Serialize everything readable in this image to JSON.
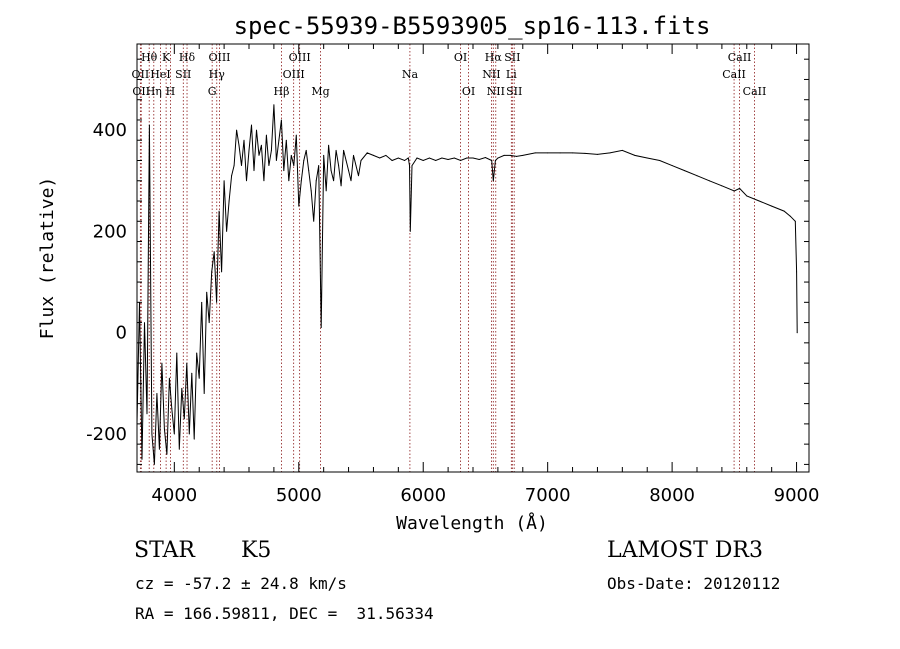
{
  "chart_data": {
    "type": "line",
    "title": "spec-55939-B5593905_sp16-113.fits",
    "xlabel": "Wavelength (Å)",
    "ylabel": "Flux (relative)",
    "xlim": [
      3700,
      9100
    ],
    "ylim": [
      -275,
      570
    ],
    "xticks": [
      4000,
      5000,
      6000,
      7000,
      8000,
      9000
    ],
    "yticks": [
      -200,
      0,
      200,
      400
    ],
    "series": [
      {
        "name": "flux",
        "x": [
          3700,
          3720,
          3740,
          3760,
          3780,
          3800,
          3820,
          3840,
          3860,
          3880,
          3900,
          3920,
          3940,
          3960,
          3980,
          4000,
          4020,
          4040,
          4060,
          4080,
          4100,
          4120,
          4140,
          4160,
          4180,
          4200,
          4220,
          4240,
          4260,
          4280,
          4300,
          4320,
          4340,
          4360,
          4380,
          4400,
          4420,
          4440,
          4460,
          4480,
          4500,
          4520,
          4540,
          4560,
          4580,
          4600,
          4620,
          4640,
          4660,
          4680,
          4700,
          4720,
          4740,
          4760,
          4780,
          4800,
          4820,
          4840,
          4860,
          4880,
          4900,
          4920,
          4940,
          4960,
          4980,
          5000,
          5020,
          5040,
          5060,
          5080,
          5100,
          5120,
          5140,
          5160,
          5180,
          5200,
          5220,
          5240,
          5260,
          5280,
          5300,
          5320,
          5340,
          5360,
          5380,
          5400,
          5420,
          5440,
          5460,
          5480,
          5500,
          5550,
          5600,
          5650,
          5700,
          5750,
          5800,
          5850,
          5880,
          5890,
          5896,
          5910,
          5950,
          6000,
          6050,
          6100,
          6150,
          6200,
          6250,
          6300,
          6350,
          6400,
          6450,
          6500,
          6550,
          6563,
          6580,
          6600,
          6650,
          6700,
          6750,
          6800,
          6900,
          7000,
          7100,
          7200,
          7300,
          7400,
          7500,
          7600,
          7700,
          7800,
          7900,
          8000,
          8100,
          8200,
          8300,
          8400,
          8500,
          8542,
          8600,
          8700,
          8800,
          8900,
          8950,
          8990,
          9000,
          9005
        ],
        "y": [
          -180,
          60,
          -250,
          20,
          -160,
          410,
          -200,
          -260,
          -120,
          -230,
          -60,
          -190,
          -240,
          -90,
          -150,
          -200,
          -40,
          -230,
          -110,
          -170,
          -60,
          -200,
          -80,
          -210,
          -40,
          -90,
          60,
          -120,
          80,
          20,
          120,
          160,
          60,
          240,
          120,
          300,
          200,
          260,
          310,
          330,
          400,
          370,
          330,
          380,
          300,
          360,
          410,
          320,
          400,
          350,
          370,
          300,
          390,
          330,
          360,
          450,
          340,
          380,
          420,
          320,
          380,
          300,
          350,
          330,
          390,
          250,
          300,
          340,
          360,
          320,
          280,
          220,
          300,
          330,
          10,
          350,
          280,
          370,
          320,
          300,
          360,
          330,
          290,
          360,
          340,
          320,
          300,
          350,
          330,
          310,
          340,
          355,
          350,
          345,
          350,
          340,
          345,
          340,
          345,
          330,
          200,
          330,
          345,
          340,
          345,
          340,
          345,
          342,
          345,
          340,
          345,
          345,
          342,
          346,
          340,
          300,
          340,
          345,
          350,
          350,
          348,
          350,
          355,
          355,
          355,
          355,
          354,
          352,
          355,
          360,
          350,
          345,
          340,
          330,
          320,
          310,
          300,
          290,
          280,
          285,
          270,
          260,
          250,
          240,
          230,
          220,
          120,
          0
        ]
      }
    ],
    "line_markers": [
      {
        "wave": 3727,
        "label": "OII",
        "row": 2
      },
      {
        "wave": 3734,
        "label": "OII",
        "row": 3
      },
      {
        "wave": 3798,
        "label": "Hθ",
        "row": 1
      },
      {
        "wave": 3835,
        "label": "Hη",
        "row": 3
      },
      {
        "wave": 3889,
        "label": "HeI",
        "row": 2
      },
      {
        "wave": 3934,
        "label": "K",
        "row": 1
      },
      {
        "wave": 3969,
        "label": "H",
        "row": 3
      },
      {
        "wave": 4072,
        "label": "SII",
        "row": 2
      },
      {
        "wave": 4102,
        "label": "Hδ",
        "row": 1
      },
      {
        "wave": 4304,
        "label": "G",
        "row": 3
      },
      {
        "wave": 4341,
        "label": "Hγ",
        "row": 2
      },
      {
        "wave": 4363,
        "label": "OIII",
        "row": 1
      },
      {
        "wave": 4861,
        "label": "Hβ",
        "row": 3
      },
      {
        "wave": 4959,
        "label": "OIII",
        "row": 2
      },
      {
        "wave": 5007,
        "label": "OIII",
        "row": 1
      },
      {
        "wave": 5175,
        "label": "Mg",
        "row": 3
      },
      {
        "wave": 5893,
        "label": "Na",
        "row": 2
      },
      {
        "wave": 6300,
        "label": "OI",
        "row": 1
      },
      {
        "wave": 6364,
        "label": "OI",
        "row": 3
      },
      {
        "wave": 6548,
        "label": "NII",
        "row": 2
      },
      {
        "wave": 6563,
        "label": "Hα",
        "row": 1
      },
      {
        "wave": 6583,
        "label": "NII",
        "row": 3
      },
      {
        "wave": 6708,
        "label": "Li",
        "row": 2
      },
      {
        "wave": 6716,
        "label": "SII",
        "row": 1
      },
      {
        "wave": 6731,
        "label": "SII",
        "row": 3
      },
      {
        "wave": 8498,
        "label": "CaII",
        "row": 2
      },
      {
        "wave": 8542,
        "label": "CaII",
        "row": 1
      },
      {
        "wave": 8662,
        "label": "CaII",
        "row": 3
      }
    ]
  },
  "info": {
    "object_class": "STAR",
    "subclass": "K5",
    "survey": "LAMOST DR3",
    "redshift": "cz = -57.2 ± 24.8 km/s",
    "obs_date": "Obs-Date: 20120112",
    "coords": "RA = 166.59811, DEC =  31.56334"
  },
  "colors": {
    "axis": "#000000",
    "spectrum": "#000000",
    "marker": "#8b1a1a"
  }
}
